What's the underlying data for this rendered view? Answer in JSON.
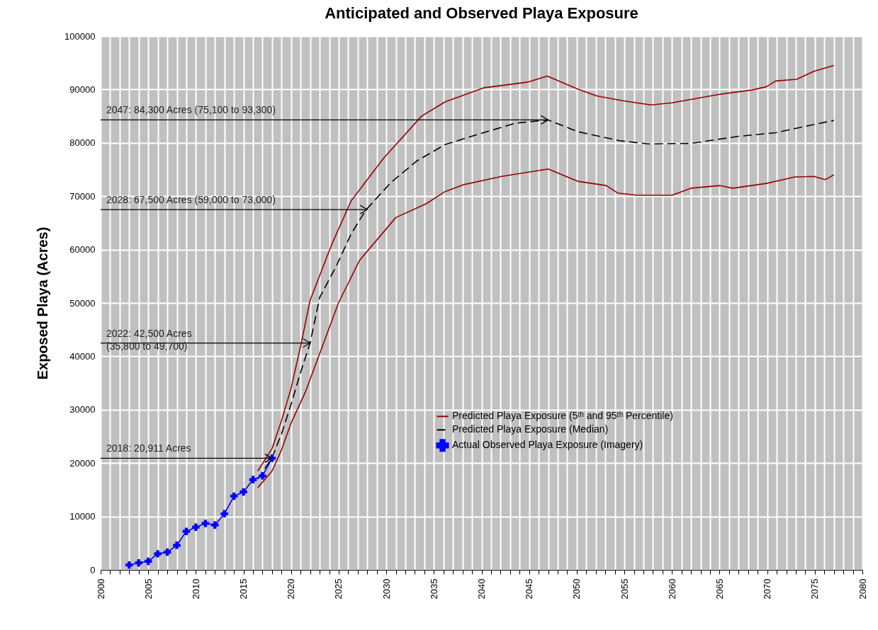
{
  "chart_data": {
    "type": "line",
    "title": "Anticipated and Observed Playa Exposure",
    "ylabel": "Exposed Playa (Acres)",
    "xlim": [
      2000,
      2080
    ],
    "ylim": [
      0,
      100000
    ],
    "xticks": [
      2000,
      {
        "value": 2001,
        "label": null
      },
      {
        "value": 2002,
        "label": null
      },
      {
        "value": 2003,
        "label": null
      },
      {
        "value": 2004,
        "label": null
      },
      2005,
      {
        "value": 2006,
        "label": null
      },
      {
        "value": 2007,
        "label": null
      },
      {
        "value": 2008,
        "label": null
      },
      {
        "value": 2009,
        "label": null
      },
      2010,
      {
        "value": 2011,
        "label": null
      },
      {
        "value": 2012,
        "label": null
      },
      {
        "value": 2013,
        "label": null
      },
      {
        "value": 2014,
        "label": null
      },
      2015,
      {
        "value": 2016,
        "label": null
      },
      {
        "value": 2017,
        "label": null
      },
      {
        "value": 2018,
        "label": null
      },
      {
        "value": 2019,
        "label": null
      },
      2020,
      {
        "value": 2021,
        "label": null
      },
      {
        "value": 2022,
        "label": null
      },
      {
        "value": 2023,
        "label": null
      },
      {
        "value": 2024,
        "label": null
      },
      2025,
      {
        "value": 2026,
        "label": null
      },
      {
        "value": 2027,
        "label": null
      },
      {
        "value": 2028,
        "label": null
      },
      {
        "value": 2029,
        "label": null
      },
      2030,
      {
        "value": 2031,
        "label": null
      },
      {
        "value": 2032,
        "label": null
      },
      {
        "value": 2033,
        "label": null
      },
      {
        "value": 2034,
        "label": null
      },
      2035,
      {
        "value": 2036,
        "label": null
      },
      {
        "value": 2037,
        "label": null
      },
      {
        "value": 2038,
        "label": null
      },
      {
        "value": 2039,
        "label": null
      },
      2040,
      {
        "value": 2041,
        "label": null
      },
      {
        "value": 2042,
        "label": null
      },
      {
        "value": 2043,
        "label": null
      },
      {
        "value": 2044,
        "label": null
      },
      2045,
      {
        "value": 2046,
        "label": null
      },
      {
        "value": 2047,
        "label": null
      },
      {
        "value": 2048,
        "label": null
      },
      {
        "value": 2049,
        "label": null
      },
      2050,
      {
        "value": 2051,
        "label": null
      },
      {
        "value": 2052,
        "label": null
      },
      {
        "value": 2053,
        "label": null
      },
      {
        "value": 2054,
        "label": null
      },
      2055,
      {
        "value": 2056,
        "label": null
      },
      {
        "value": 2057,
        "label": null
      },
      {
        "value": 2058,
        "label": null
      },
      {
        "value": 2059,
        "label": null
      },
      2060,
      {
        "value": 2061,
        "label": null
      },
      {
        "value": 2062,
        "label": null
      },
      {
        "value": 2063,
        "label": null
      },
      {
        "value": 2064,
        "label": null
      },
      2065,
      {
        "value": 2066,
        "label": null
      },
      {
        "value": 2067,
        "label": null
      },
      {
        "value": 2068,
        "label": null
      },
      {
        "value": 2069,
        "label": null
      },
      2070,
      {
        "value": 2071,
        "label": null
      },
      {
        "value": 2072,
        "label": null
      },
      {
        "value": 2073,
        "label": null
      },
      {
        "value": 2074,
        "label": null
      },
      2075,
      {
        "value": 2076,
        "label": null
      },
      {
        "value": 2077,
        "label": null
      },
      {
        "value": 2078,
        "label": null
      },
      {
        "value": 2079,
        "label": null
      },
      2080
    ],
    "yticks": [
      0,
      10000,
      20000,
      30000,
      40000,
      50000,
      60000,
      70000,
      80000,
      90000,
      100000
    ],
    "grid": true,
    "legend": "bottom right",
    "series": [
      {
        "name": "Predicted Playa Exposure (5ᵗʰ and 95ᵗʰ Percentile)",
        "color": "#990000",
        "line_style": "solid",
        "marker": "none",
        "x": [
          2016.5,
          2018,
          2019,
          2020,
          2021,
          2022,
          2024.3,
          2026.3,
          2029.7,
          2033.7,
          2036.2,
          2040.2,
          2044.9,
          2046.9,
          2050.1,
          2052.1,
          2054.8,
          2057.8,
          2060,
          2065,
          2068.4,
          2069.9,
          2070.9,
          2073.1,
          2074.9,
          2077
        ],
        "values": [
          18500,
          22700,
          28000,
          34000,
          41900,
          50500,
          61100,
          69100,
          77100,
          85000,
          87700,
          90300,
          91400,
          92500,
          90100,
          88800,
          87900,
          87100,
          87500,
          89100,
          89900,
          90500,
          91600,
          91900,
          93400,
          94500
        ]
      },
      {
        "color": "#990000",
        "line_style": "solid",
        "marker": "none",
        "x": [
          2016.5,
          2018,
          2019,
          2020,
          2021.5,
          2025,
          2027.2,
          2031,
          2034.2,
          2036.2,
          2038.2,
          2042.1,
          2047,
          2050.1,
          2053.1,
          2054.3,
          2056.3,
          2060,
          2062,
          2065,
          2066.4,
          2069.9,
          2072.9,
          2074.9,
          2076.1,
          2077
        ],
        "values": [
          15400,
          18500,
          22500,
          27500,
          33300,
          50100,
          58000,
          66000,
          68600,
          70900,
          72200,
          73700,
          75100,
          72800,
          72000,
          70600,
          70200,
          70200,
          71500,
          72000,
          71500,
          72400,
          73600,
          73700,
          73100,
          74000
        ]
      },
      {
        "name": "Predicted Playa Exposure (Median)",
        "color": "#000000",
        "line_style": "dashed",
        "marker": "none",
        "x": [
          2016.5,
          2018,
          2019,
          2020,
          2021,
          2022,
          2023,
          2024.8,
          2026.3,
          2027.8,
          2030.5,
          2033.2,
          2036.2,
          2040.2,
          2043.6,
          2047,
          2050.1,
          2054.5,
          2057.5,
          2062,
          2066.9,
          2070.9,
          2075.1,
          2077
        ],
        "values": [
          17000,
          21000,
          25500,
          31000,
          37000,
          42500,
          51000,
          57100,
          62900,
          67300,
          72600,
          76600,
          79700,
          81900,
          83700,
          84300,
          82100,
          80400,
          79800,
          79900,
          81200,
          81900,
          83500,
          84200
        ]
      },
      {
        "name": "Actual Observed Playa Exposure (Imagery)",
        "color": "#0000ff",
        "line_style": "solid",
        "marker": "cross",
        "x": [
          2003,
          2004,
          2005,
          2006,
          2007,
          2008,
          2009,
          2010,
          2011,
          2012,
          2013,
          2014,
          2015,
          2016,
          2017,
          2018
        ],
        "values": [
          900,
          1300,
          1600,
          3000,
          3300,
          4600,
          7200,
          8000,
          8700,
          8400,
          10500,
          13800,
          14600,
          16900,
          17600,
          20911
        ]
      }
    ],
    "annotations": [
      {
        "text": "2047: 84,300 Acres (75,100 to 93,300)",
        "x": 2047,
        "y": 84300
      },
      {
        "text": "2028: 67,500 Acres (59,000 to 73,000)",
        "x": 2028,
        "y": 67500
      },
      {
        "text": "2022: 42,500 Acres\n(35,800 to 49,700)",
        "x": 2022,
        "y": 42500
      },
      {
        "text": "2018: 20,911 Acres",
        "x": 2018,
        "y": 20911
      }
    ]
  }
}
